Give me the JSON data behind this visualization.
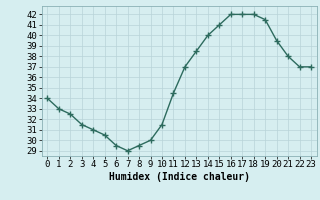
{
  "x": [
    0,
    1,
    2,
    3,
    4,
    5,
    6,
    7,
    8,
    9,
    10,
    11,
    12,
    13,
    14,
    15,
    16,
    17,
    18,
    19,
    20,
    21,
    22,
    23
  ],
  "y": [
    34,
    33,
    32.5,
    31.5,
    31,
    30.5,
    29.5,
    29,
    29.5,
    30,
    31.5,
    34.5,
    37,
    38.5,
    40,
    41,
    42,
    42,
    42,
    41.5,
    39.5,
    38,
    37,
    37
  ],
  "line_color": "#2d6b5e",
  "marker": "+",
  "marker_size": 4,
  "marker_color": "#2d6b5e",
  "bg_color": "#d6eef0",
  "grid_color": "#b8d4d8",
  "xlabel": "Humidex (Indice chaleur)",
  "xlabel_fontsize": 7,
  "xlim": [
    -0.5,
    23.5
  ],
  "ylim": [
    28.5,
    42.8
  ],
  "yticks": [
    29,
    30,
    31,
    32,
    33,
    34,
    35,
    36,
    37,
    38,
    39,
    40,
    41,
    42
  ],
  "xticks": [
    0,
    1,
    2,
    3,
    4,
    5,
    6,
    7,
    8,
    9,
    10,
    11,
    12,
    13,
    14,
    15,
    16,
    17,
    18,
    19,
    20,
    21,
    22,
    23
  ],
  "tick_fontsize": 6.5,
  "line_width": 1.0
}
